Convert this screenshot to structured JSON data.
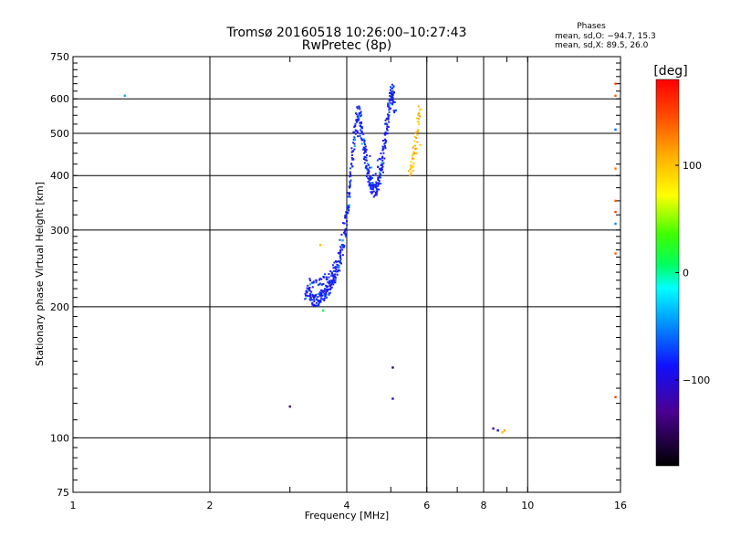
{
  "chart_data": {
    "type": "scatter",
    "title": "Tromsø 20160518 10:26:00–10:27:43",
    "subtitle": "RwPretec (8p)",
    "xlabel": "Frequency [MHz]",
    "ylabel": "Stationary phase Virtual Height [km]",
    "x_scale": "log",
    "y_scale": "log",
    "xlim": [
      1,
      16
    ],
    "ylim": [
      75,
      750
    ],
    "x_ticks": [
      1,
      2,
      4,
      6,
      8,
      10,
      16
    ],
    "x_tick_labels": [
      "1",
      "2",
      "4",
      "6",
      "8",
      "10",
      "16"
    ],
    "y_ticks": [
      75,
      100,
      200,
      300,
      400,
      500,
      600,
      750
    ],
    "y_tick_labels": [
      "75",
      "100",
      "200",
      "300",
      "400",
      "500",
      "600",
      "750"
    ],
    "grid": true,
    "stats": {
      "heading": "Phases",
      "line_o": "mean, sd,O: −94.7, 15.3",
      "line_x": "mean, sd,X:  89.5, 26.0"
    },
    "colorbar": {
      "label": "[deg]",
      "range": [
        -180,
        180
      ],
      "ticks": [
        100,
        0,
        -100
      ],
      "tick_labels": [
        "100",
        "0",
        "−100"
      ]
    },
    "o_trace": [
      [
        3.25,
        213
      ],
      [
        3.3,
        218
      ],
      [
        3.35,
        208
      ],
      [
        3.4,
        205
      ],
      [
        3.45,
        207
      ],
      [
        3.5,
        210
      ],
      [
        3.55,
        213
      ],
      [
        3.6,
        216
      ],
      [
        3.65,
        220
      ],
      [
        3.7,
        225
      ],
      [
        3.75,
        232
      ],
      [
        3.8,
        240
      ],
      [
        3.85,
        252
      ],
      [
        3.9,
        268
      ],
      [
        3.95,
        290
      ],
      [
        4.0,
        320
      ],
      [
        4.05,
        360
      ],
      [
        4.1,
        420
      ],
      [
        4.15,
        480
      ],
      [
        4.2,
        540
      ],
      [
        4.25,
        560
      ],
      [
        4.3,
        530
      ],
      [
        4.35,
        480
      ],
      [
        4.4,
        440
      ],
      [
        4.45,
        410
      ],
      [
        4.5,
        390
      ],
      [
        4.55,
        375
      ],
      [
        4.6,
        368
      ],
      [
        4.65,
        372
      ],
      [
        4.7,
        385
      ],
      [
        4.75,
        405
      ],
      [
        4.8,
        430
      ],
      [
        4.85,
        470
      ],
      [
        4.9,
        520
      ],
      [
        4.95,
        570
      ],
      [
        5.0,
        610
      ],
      [
        5.05,
        635
      ],
      [
        5.1,
        560
      ]
    ],
    "o_trace_upper": [
      [
        3.3,
        228
      ],
      [
        3.4,
        224
      ],
      [
        3.5,
        228
      ],
      [
        3.6,
        232
      ],
      [
        3.7,
        238
      ],
      [
        3.8,
        250
      ],
      [
        4.0,
        345
      ],
      [
        4.2,
        500
      ],
      [
        4.4,
        470
      ],
      [
        4.6,
        395
      ],
      [
        4.8,
        455
      ],
      [
        5.0,
        590
      ],
      [
        5.1,
        600
      ]
    ],
    "x_trace": [
      [
        5.5,
        405
      ],
      [
        5.55,
        420
      ],
      [
        5.6,
        440
      ],
      [
        5.65,
        465
      ],
      [
        5.7,
        500
      ],
      [
        5.75,
        540
      ],
      [
        5.8,
        580
      ],
      [
        5.6,
        410
      ],
      [
        5.7,
        450
      ],
      [
        5.8,
        470
      ]
    ],
    "scattered_points": [
      {
        "x": 1.3,
        "y": 610,
        "phase": -40
      },
      {
        "x": 3.0,
        "y": 118,
        "phase": -140
      },
      {
        "x": 3.5,
        "y": 277,
        "phase": 100
      },
      {
        "x": 3.55,
        "y": 196,
        "phase": 10
      },
      {
        "x": 5.05,
        "y": 145,
        "phase": -150
      },
      {
        "x": 5.05,
        "y": 123,
        "phase": -100
      },
      {
        "x": 8.4,
        "y": 105,
        "phase": -110
      },
      {
        "x": 8.6,
        "y": 104,
        "phase": -100
      },
      {
        "x": 8.8,
        "y": 103,
        "phase": 100
      },
      {
        "x": 8.9,
        "y": 104,
        "phase": 110
      },
      {
        "x": 15.6,
        "y": 650,
        "phase": 150
      },
      {
        "x": 15.6,
        "y": 610,
        "phase": 140
      },
      {
        "x": 15.6,
        "y": 510,
        "phase": -60
      },
      {
        "x": 15.6,
        "y": 415,
        "phase": 130
      },
      {
        "x": 15.6,
        "y": 350,
        "phase": 140
      },
      {
        "x": 15.6,
        "y": 330,
        "phase": 150
      },
      {
        "x": 15.6,
        "y": 310,
        "phase": -50
      },
      {
        "x": 15.6,
        "y": 265,
        "phase": 140
      },
      {
        "x": 15.6,
        "y": 124,
        "phase": 150
      }
    ]
  }
}
